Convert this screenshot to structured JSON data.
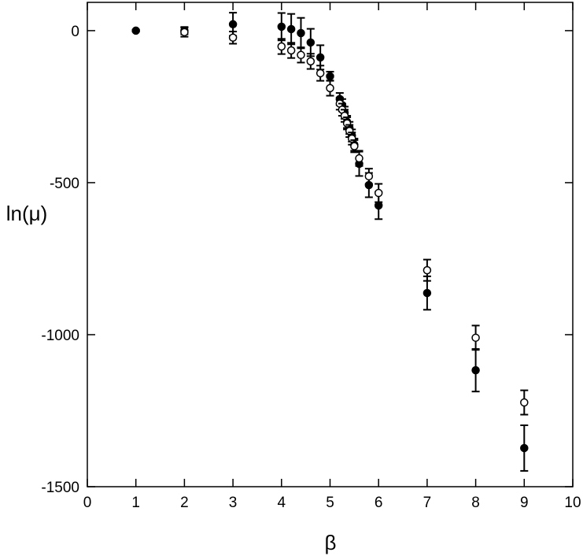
{
  "chart_data": {
    "type": "scatter",
    "xlabel": "β",
    "ylabel": "ln(μ)",
    "xlim": [
      0,
      10
    ],
    "ylim": [
      -1500,
      93
    ],
    "xticks": [
      0,
      1,
      2,
      3,
      4,
      5,
      6,
      7,
      8,
      9,
      10
    ],
    "yticks": [
      -1500,
      -1000,
      -500,
      0
    ],
    "grid": false,
    "series": [
      {
        "color": "#000000",
        "marker": "filled",
        "x": [
          1,
          2,
          3,
          4,
          4.2,
          4.4,
          4.6,
          4.8,
          5.0,
          5.2,
          5.25,
          5.3,
          5.35,
          5.4,
          5.45,
          5.5,
          5.6,
          5.8,
          6.0,
          7,
          8,
          9
        ],
        "values": [
          0,
          0,
          21,
          13,
          5,
          -8,
          -39,
          -88,
          -150,
          -225,
          -245,
          -270,
          -300,
          -320,
          -345,
          -375,
          -438,
          -508,
          -575,
          -863,
          -1117,
          -1373
        ],
        "errors": [
          3,
          12,
          38,
          45,
          50,
          50,
          45,
          40,
          15,
          20,
          20,
          20,
          20,
          20,
          20,
          20,
          40,
          40,
          45,
          55,
          70,
          75
        ]
      },
      {
        "color": "#000000",
        "marker": "open",
        "x": [
          2,
          3,
          4,
          4.2,
          4.4,
          4.6,
          4.8,
          5.0,
          5.2,
          5.25,
          5.3,
          5.35,
          5.4,
          5.45,
          5.5,
          5.6,
          5.8,
          6.0,
          7,
          8,
          9
        ],
        "values": [
          -5,
          -23,
          -52,
          -65,
          -80,
          -101,
          -140,
          -189,
          -240,
          -260,
          -280,
          -305,
          -330,
          -355,
          -380,
          -420,
          -479,
          -534,
          -788,
          -1010,
          -1223
        ],
        "errors": [
          15,
          20,
          25,
          25,
          25,
          25,
          25,
          25,
          20,
          20,
          20,
          20,
          20,
          20,
          20,
          25,
          25,
          30,
          35,
          40,
          40
        ]
      }
    ]
  }
}
